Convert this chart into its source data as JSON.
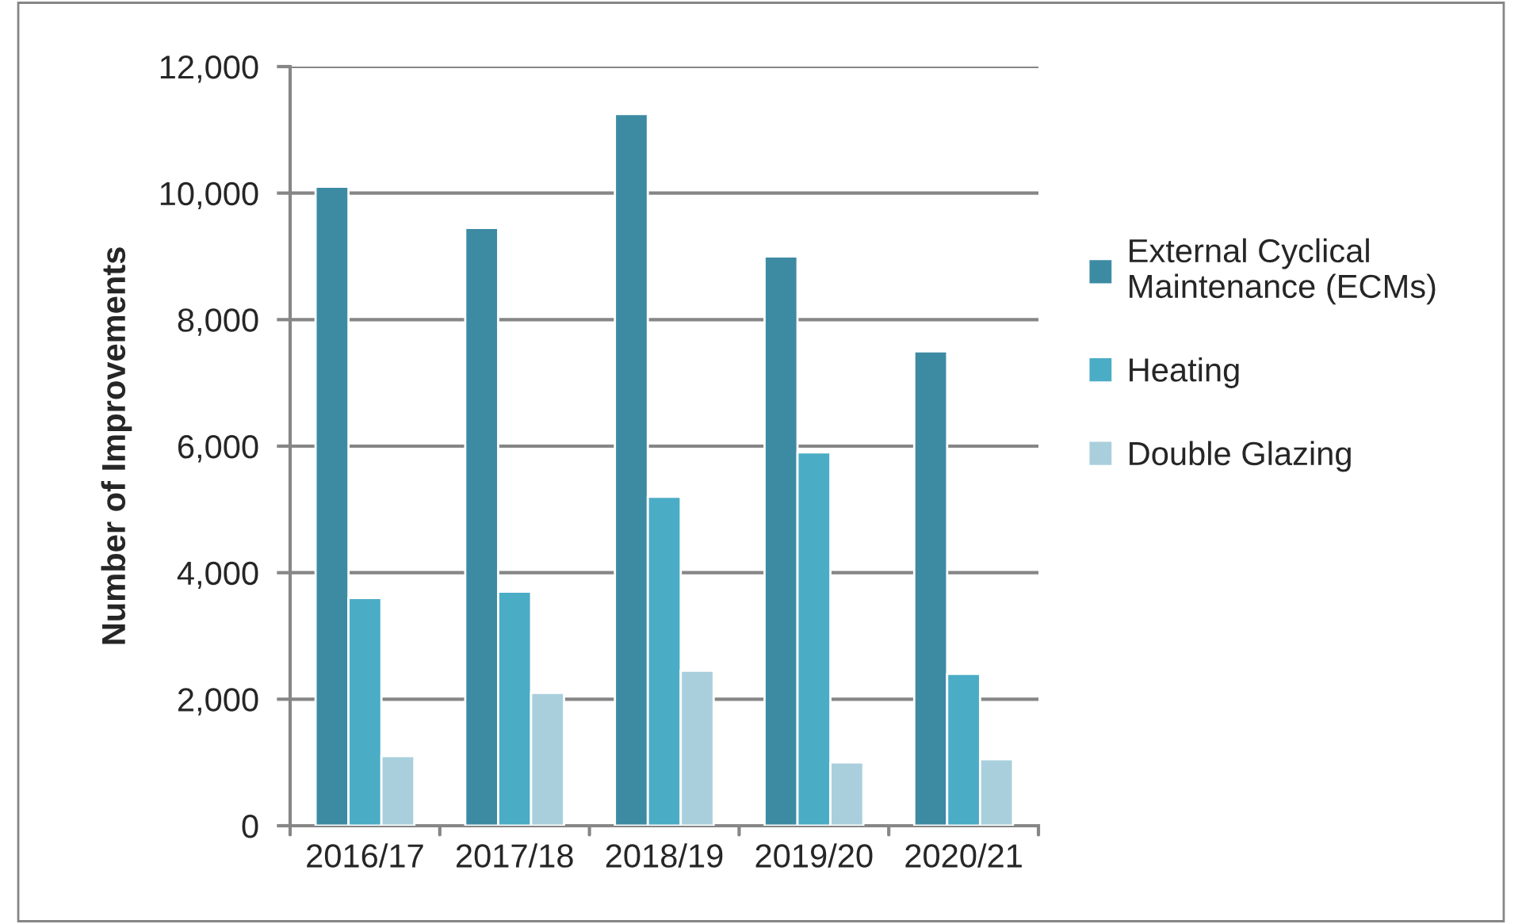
{
  "chart_data": {
    "type": "bar",
    "ylabel": "Number of Improvements",
    "categories": [
      "2016/17",
      "2017/18",
      "2018/19",
      "2019/20",
      "2020/21"
    ],
    "series": [
      {
        "name": "External Cyclical Maintenance (ECMs)",
        "color": "#3d8ba3",
        "values": [
          10100,
          9450,
          11250,
          9000,
          7500
        ]
      },
      {
        "name": "Heating",
        "color": "#4bacc6",
        "values": [
          3600,
          3700,
          5200,
          5900,
          2400
        ]
      },
      {
        "name": "Double Glazing",
        "color": "#a9cfdc",
        "values": [
          1100,
          2100,
          2450,
          1000,
          1050
        ]
      }
    ],
    "ylim": [
      0,
      12000
    ],
    "yticks": [
      {
        "value": 0,
        "label": "0"
      },
      {
        "value": 2000,
        "label": "2,000"
      },
      {
        "value": 4000,
        "label": "4,000"
      },
      {
        "value": 6000,
        "label": "6,000"
      },
      {
        "value": 8000,
        "label": "8,000"
      },
      {
        "value": 10000,
        "label": "10,000"
      },
      {
        "value": 12000,
        "label": "12,000"
      }
    ],
    "grid": "y",
    "legend": "right"
  }
}
